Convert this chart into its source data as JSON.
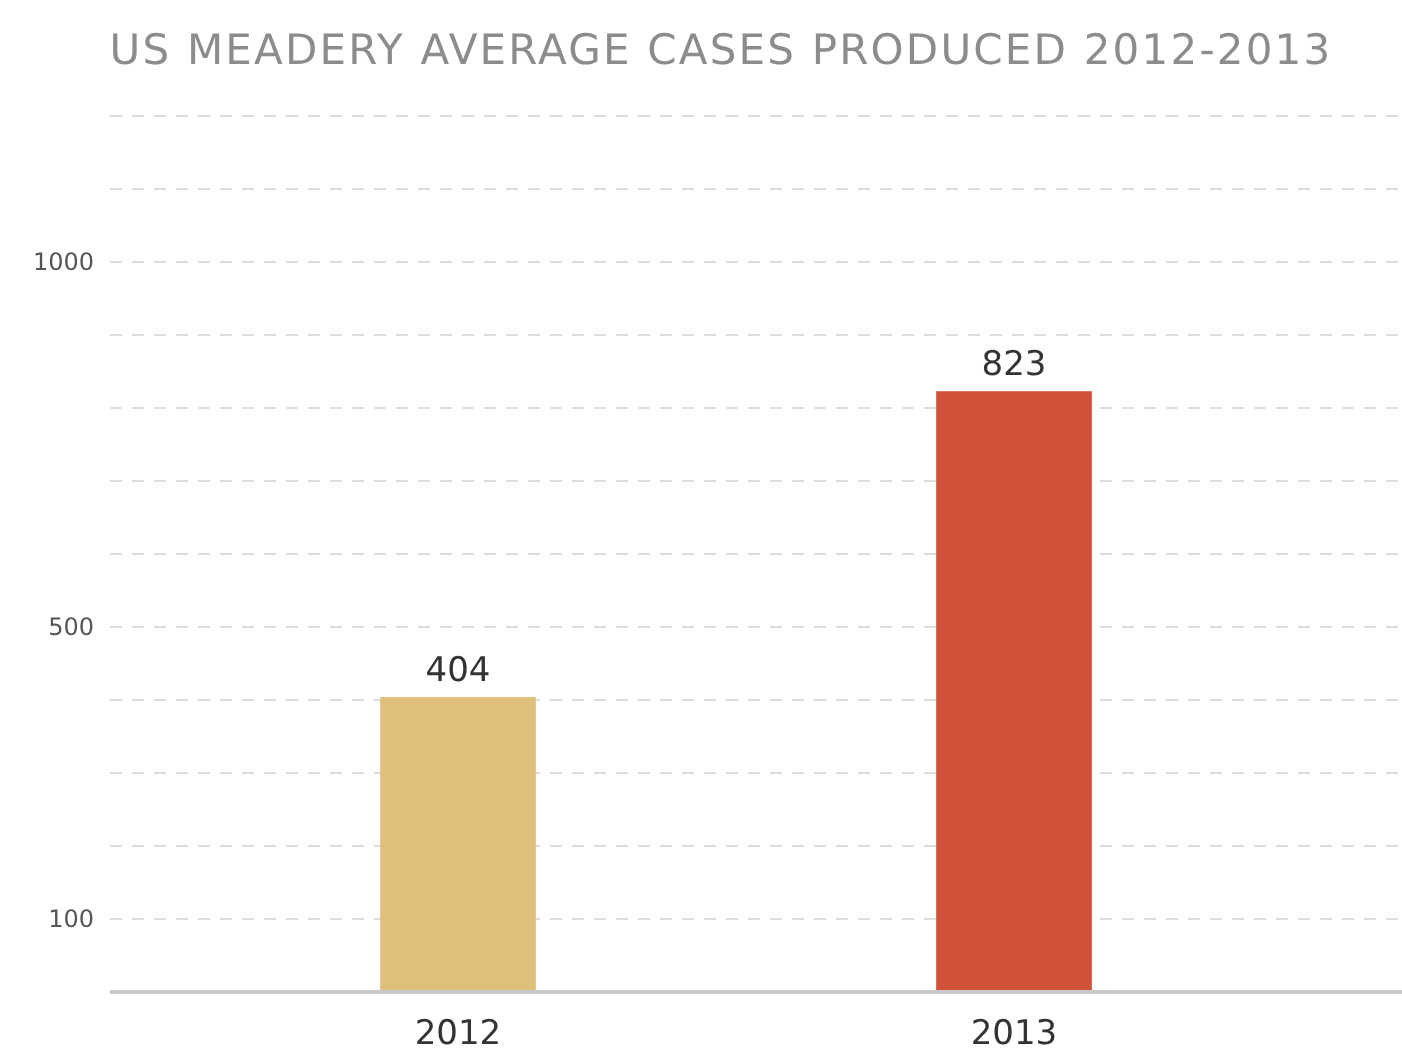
{
  "chart_data": {
    "type": "bar",
    "title": "US MEADERY AVERAGE CASES PRODUCED 2012-2013",
    "categories": [
      "2012",
      "2013"
    ],
    "values": [
      404,
      823
    ],
    "colors": [
      "#dfc07a",
      "#d0523a"
    ],
    "ylim": [
      0,
      1200
    ],
    "yticks": [
      100,
      {
        "value": 200,
        "label": null
      },
      {
        "value": 300,
        "label": null
      },
      {
        "value": 400,
        "label": null
      },
      500,
      {
        "value": 600,
        "label": null
      },
      {
        "value": 700,
        "label": null
      },
      {
        "value": 800,
        "label": null
      },
      {
        "value": 900,
        "label": null
      },
      1000,
      {
        "value": 1100,
        "label": null
      },
      {
        "value": 1200,
        "label": null
      }
    ],
    "grid": "y",
    "data_labels": true
  }
}
